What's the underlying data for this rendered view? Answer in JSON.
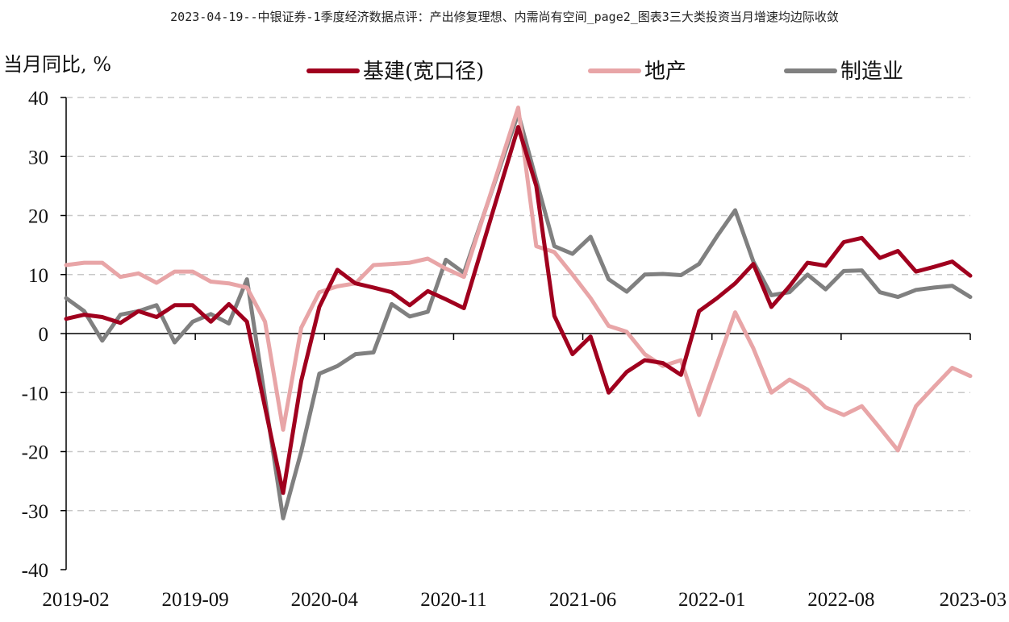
{
  "document_title": "2023-04-19--中银证券-1季度经济数据点评：产出修复理想、内需尚有空间_page2_图表3三大类投资当月增速均边际收敛",
  "chart_data": {
    "type": "line",
    "ylabel": "当月同比, %",
    "ylim": [
      -40,
      40
    ],
    "yticks": [
      40,
      30,
      20,
      10,
      0,
      -10,
      -20,
      -30,
      -40
    ],
    "xticks": [
      "2019-02",
      "2019-09",
      "2020-04",
      "2020-11",
      "2021-06",
      "2022-01",
      "2022-08",
      "2023-03"
    ],
    "x_months": 50,
    "grid": true,
    "legend_position": "top",
    "series": [
      {
        "name": "基建(宽口径)",
        "color": "#a0001e",
        "points": [
          [
            0,
            2.5
          ],
          [
            1,
            3.2
          ],
          [
            2,
            2.8
          ],
          [
            3,
            1.8
          ],
          [
            4,
            3.8
          ],
          [
            5,
            2.8
          ],
          [
            6,
            4.8
          ],
          [
            7,
            4.8
          ],
          [
            8,
            2.0
          ],
          [
            9,
            5.0
          ],
          [
            10,
            2.0
          ],
          [
            12,
            -27.0
          ],
          [
            13,
            -8.0
          ],
          [
            14,
            4.5
          ],
          [
            15,
            10.8
          ],
          [
            16,
            8.5
          ],
          [
            17,
            7.8
          ],
          [
            18,
            7.0
          ],
          [
            19,
            4.8
          ],
          [
            20,
            7.2
          ],
          [
            21,
            5.8
          ],
          [
            22,
            4.3
          ],
          [
            25,
            35.0
          ],
          [
            26,
            25.0
          ],
          [
            27,
            3.0
          ],
          [
            28,
            -3.5
          ],
          [
            29,
            -0.5
          ],
          [
            30,
            -10.0
          ],
          [
            31,
            -6.5
          ],
          [
            32,
            -4.5
          ],
          [
            33,
            -5.0
          ],
          [
            34,
            -7.0
          ],
          [
            35,
            3.8
          ],
          [
            36,
            6.0
          ],
          [
            37,
            8.5
          ],
          [
            38,
            11.8
          ],
          [
            39,
            4.5
          ],
          [
            40,
            8.0
          ],
          [
            41,
            12.0
          ],
          [
            42,
            11.5
          ],
          [
            43,
            15.5
          ],
          [
            44,
            16.2
          ],
          [
            45,
            12.8
          ],
          [
            46,
            14.0
          ],
          [
            47,
            10.5
          ],
          [
            48,
            11.3
          ],
          [
            49,
            12.2
          ],
          [
            50,
            9.8
          ]
        ]
      },
      {
        "name": "地产",
        "color": "#e8a5a7",
        "points": [
          [
            0,
            11.6
          ],
          [
            1,
            12.0
          ],
          [
            2,
            12.0
          ],
          [
            3,
            9.6
          ],
          [
            4,
            10.2
          ],
          [
            5,
            8.6
          ],
          [
            6,
            10.5
          ],
          [
            7,
            10.5
          ],
          [
            8,
            8.8
          ],
          [
            9,
            8.5
          ],
          [
            10,
            7.8
          ],
          [
            11,
            2.0
          ],
          [
            12,
            -16.3
          ],
          [
            13,
            1.0
          ],
          [
            14,
            7.0
          ],
          [
            15,
            8.0
          ],
          [
            16,
            8.5
          ],
          [
            17,
            11.6
          ],
          [
            18,
            11.8
          ],
          [
            19,
            12.0
          ],
          [
            20,
            12.7
          ],
          [
            21,
            11.0
          ],
          [
            22,
            9.6
          ],
          [
            25,
            38.3
          ],
          [
            26,
            14.8
          ],
          [
            27,
            13.8
          ],
          [
            28,
            10.0
          ],
          [
            29,
            6.0
          ],
          [
            30,
            1.3
          ],
          [
            31,
            0.3
          ],
          [
            32,
            -3.5
          ],
          [
            33,
            -5.5
          ],
          [
            34,
            -4.5
          ],
          [
            35,
            -13.8
          ],
          [
            37,
            3.6
          ],
          [
            38,
            -2.5
          ],
          [
            39,
            -10.0
          ],
          [
            40,
            -7.8
          ],
          [
            41,
            -9.5
          ],
          [
            42,
            -12.5
          ],
          [
            43,
            -13.8
          ],
          [
            44,
            -12.3
          ],
          [
            45,
            -16.0
          ],
          [
            46,
            -19.8
          ],
          [
            47,
            -12.3
          ],
          [
            48,
            -9.0
          ],
          [
            49,
            -5.8
          ],
          [
            50,
            -7.2
          ]
        ]
      },
      {
        "name": "制造业",
        "color": "#808080",
        "points": [
          [
            0,
            6.0
          ],
          [
            1,
            3.8
          ],
          [
            2,
            -1.2
          ],
          [
            3,
            3.2
          ],
          [
            4,
            3.8
          ],
          [
            5,
            4.8
          ],
          [
            6,
            -1.5
          ],
          [
            7,
            2.0
          ],
          [
            8,
            3.3
          ],
          [
            9,
            1.7
          ],
          [
            10,
            9.2
          ],
          [
            11,
            -11.0
          ],
          [
            12,
            -31.3
          ],
          [
            13,
            -20.0
          ],
          [
            14,
            -6.8
          ],
          [
            15,
            -5.5
          ],
          [
            16,
            -3.5
          ],
          [
            17,
            -3.2
          ],
          [
            18,
            5.0
          ],
          [
            19,
            2.9
          ],
          [
            20,
            3.7
          ],
          [
            21,
            12.5
          ],
          [
            22,
            10.3
          ],
          [
            25,
            37.3
          ],
          [
            26,
            26.0
          ],
          [
            27,
            14.8
          ],
          [
            28,
            13.5
          ],
          [
            29,
            16.4
          ],
          [
            30,
            9.2
          ],
          [
            31,
            7.1
          ],
          [
            32,
            10.0
          ],
          [
            33,
            10.1
          ],
          [
            34,
            9.9
          ],
          [
            35,
            11.8
          ],
          [
            36,
            16.5
          ],
          [
            37,
            20.9
          ],
          [
            38,
            12.2
          ],
          [
            39,
            6.5
          ],
          [
            40,
            7.0
          ],
          [
            41,
            10.0
          ],
          [
            42,
            7.5
          ],
          [
            43,
            10.6
          ],
          [
            44,
            10.7
          ],
          [
            45,
            7.0
          ],
          [
            46,
            6.2
          ],
          [
            47,
            7.4
          ],
          [
            48,
            7.8
          ],
          [
            49,
            8.1
          ],
          [
            50,
            6.2
          ]
        ]
      }
    ]
  }
}
